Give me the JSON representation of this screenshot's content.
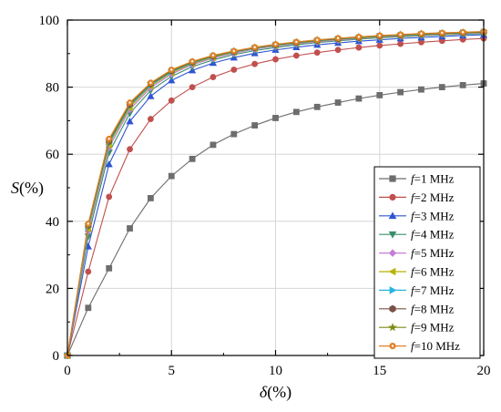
{
  "chart_data": {
    "type": "line",
    "xlabel": {
      "symbol": "δ",
      "unit": "(%)"
    },
    "ylabel": {
      "symbol": "S",
      "unit": "(%)"
    },
    "xlim": [
      0,
      20
    ],
    "ylim": [
      0,
      100
    ],
    "xticks": [
      "0",
      "5",
      "10",
      "15",
      "20"
    ],
    "yticks": [
      "0",
      "20",
      "40",
      "60",
      "80",
      "100"
    ],
    "grid": true,
    "legend_position": "bottom-right",
    "x": [
      0,
      1,
      2,
      3,
      4,
      5,
      6,
      7,
      8,
      9,
      10,
      11,
      12,
      13,
      14,
      15,
      16,
      17,
      18,
      19,
      20
    ],
    "series": [
      {
        "name": {
          "var": "f",
          "text": "=1 MHz"
        },
        "color": "#6d6d6d",
        "marker": "square",
        "values": [
          0,
          14.2,
          26.0,
          37.9,
          46.9,
          53.5,
          58.6,
          62.8,
          66.0,
          68.6,
          70.8,
          72.6,
          74.1,
          75.4,
          76.6,
          77.6,
          78.5,
          79.3,
          80.0,
          80.6,
          81.1
        ]
      },
      {
        "name": {
          "var": "f",
          "text": "=2 MHz"
        },
        "color": "#c0504d",
        "marker": "circle",
        "values": [
          0,
          25.0,
          47.3,
          61.5,
          70.5,
          76.0,
          80.0,
          83.0,
          85.2,
          86.9,
          88.3,
          89.4,
          90.3,
          91.1,
          91.8,
          92.4,
          92.9,
          93.4,
          93.8,
          94.2,
          94.5
        ]
      },
      {
        "name": {
          "var": "f",
          "text": "=3 MHz"
        },
        "color": "#2f55d4",
        "marker": "triangle-up",
        "values": [
          0,
          32.5,
          57.0,
          69.8,
          77.3,
          82.0,
          85.0,
          87.2,
          88.8,
          90.1,
          91.1,
          91.9,
          92.6,
          93.2,
          93.7,
          94.1,
          94.5,
          94.8,
          95.1,
          95.4,
          95.6
        ]
      },
      {
        "name": {
          "var": "f",
          "text": "=4 MHz"
        },
        "color": "#3a8f6e",
        "marker": "triangle-down",
        "values": [
          0,
          35.5,
          60.5,
          72.2,
          79.0,
          83.2,
          86.1,
          88.1,
          89.7,
          90.9,
          91.8,
          92.6,
          93.3,
          93.8,
          94.3,
          94.7,
          95.0,
          95.3,
          95.6,
          95.8,
          96.0
        ]
      },
      {
        "name": {
          "var": "f",
          "text": "=5 MHz"
        },
        "color": "#c47ed6",
        "marker": "diamond",
        "values": [
          0,
          37.0,
          62.0,
          73.3,
          79.8,
          83.9,
          86.7,
          88.6,
          90.1,
          91.3,
          92.2,
          92.9,
          93.5,
          94.0,
          94.5,
          94.9,
          95.2,
          95.5,
          95.8,
          96.0,
          96.2
        ]
      },
      {
        "name": {
          "var": "f",
          "text": "=6 MHz"
        },
        "color": "#b8b200",
        "marker": "triangle-left",
        "values": [
          0,
          37.8,
          62.8,
          73.9,
          80.3,
          84.3,
          87.0,
          88.9,
          90.4,
          91.5,
          92.4,
          93.1,
          93.7,
          94.2,
          94.6,
          95.0,
          95.3,
          95.6,
          95.9,
          96.1,
          96.3
        ]
      },
      {
        "name": {
          "var": "f",
          "text": "=7 MHz"
        },
        "color": "#27b5e0",
        "marker": "triangle-right",
        "values": [
          0,
          38.3,
          63.3,
          74.4,
          80.6,
          84.6,
          87.2,
          89.1,
          90.5,
          91.6,
          92.5,
          93.2,
          93.8,
          94.3,
          94.7,
          95.1,
          95.4,
          95.7,
          96.0,
          96.2,
          96.4
        ]
      },
      {
        "name": {
          "var": "f",
          "text": "=8 MHz"
        },
        "color": "#7a5146",
        "marker": "hexagon",
        "values": [
          0,
          38.7,
          63.8,
          74.8,
          80.9,
          84.8,
          87.4,
          89.2,
          90.6,
          91.7,
          92.6,
          93.3,
          93.9,
          94.4,
          94.8,
          95.2,
          95.5,
          95.8,
          96.0,
          96.2,
          96.4
        ]
      },
      {
        "name": {
          "var": "f",
          "text": "=9 MHz"
        },
        "color": "#7d8a12",
        "marker": "star",
        "values": [
          0,
          39.0,
          64.2,
          75.1,
          81.1,
          85.0,
          87.5,
          89.3,
          90.7,
          91.8,
          92.7,
          93.4,
          94.0,
          94.5,
          94.9,
          95.3,
          95.6,
          95.9,
          96.1,
          96.3,
          96.5
        ]
      },
      {
        "name": {
          "var": "f",
          "text": "=10 MHz"
        },
        "color": "#e0822a",
        "marker": "circle-dot",
        "values": [
          0,
          39.3,
          64.6,
          75.4,
          81.3,
          85.2,
          87.7,
          89.5,
          90.8,
          91.9,
          92.8,
          93.5,
          94.1,
          94.6,
          95.0,
          95.4,
          95.7,
          96.0,
          96.2,
          96.4,
          96.6
        ]
      }
    ]
  }
}
